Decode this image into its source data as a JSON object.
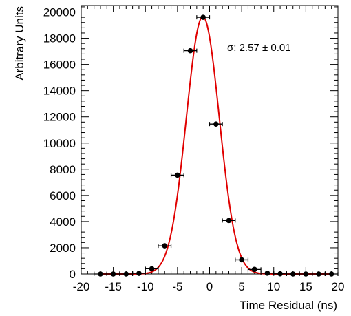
{
  "chart_data": {
    "type": "scatter",
    "title": "",
    "xlabel": "Time Residual (ns)",
    "ylabel": "Arbitrary Units",
    "xlim": [
      -20,
      20
    ],
    "ylim": [
      0,
      20500
    ],
    "x_ticks": [
      -20,
      -15,
      -10,
      -5,
      0,
      5,
      10,
      15,
      20
    ],
    "y_ticks": [
      0,
      2000,
      4000,
      6000,
      8000,
      10000,
      12000,
      14000,
      16000,
      18000,
      20000
    ],
    "x_bin_half_width": 1,
    "series": [
      {
        "kind": "points-with-xerror",
        "color": "#000000",
        "x": [
          -17,
          -15,
          -13,
          -11,
          -9,
          -7,
          -5,
          -3,
          -1,
          1,
          3,
          5,
          7,
          9,
          11,
          13,
          15,
          17,
          19
        ],
        "y": [
          0,
          0,
          0,
          50,
          400,
          2150,
          7550,
          17050,
          19600,
          11450,
          4080,
          1080,
          350,
          60,
          15,
          0,
          0,
          0,
          0
        ]
      },
      {
        "kind": "fit-curve",
        "color": "#e00000",
        "function": "gaussian",
        "amplitude": 19650,
        "mean": -1.05,
        "sigma": 2.57
      }
    ],
    "annotation": "σ: 2.57 ± 0.01",
    "grid": false,
    "legend": "none"
  }
}
